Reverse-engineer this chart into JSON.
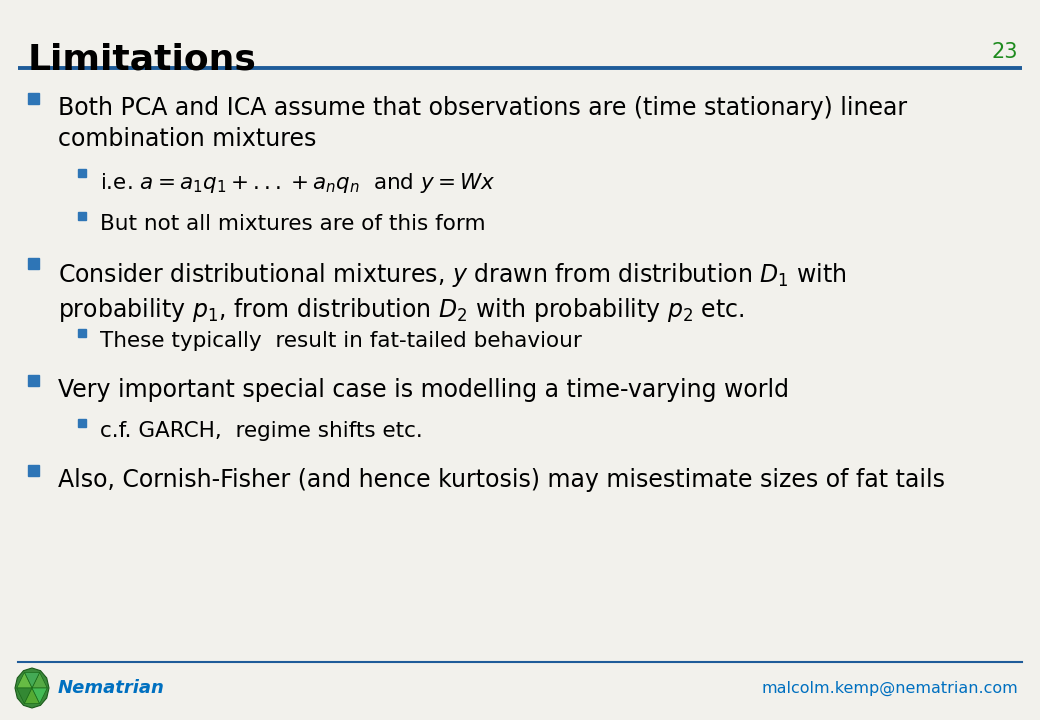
{
  "title": "Limitations",
  "slide_number": "23",
  "title_color": "#000000",
  "slide_number_color": "#1E8B1E",
  "header_line_color": "#1F5C99",
  "background_color": "#F2F1EC",
  "bullet_color": "#2E75B6",
  "sub_bullet_color": "#2E75B6",
  "text_color": "#000000",
  "footer_logo_text": "Nematrian",
  "footer_logo_color": "#0070C0",
  "footer_email": "malcolm.kemp@nematrian.com",
  "footer_email_color": "#0070C0",
  "title_fontsize": 26,
  "slide_num_fontsize": 15,
  "l1_fontsize": 17,
  "l2_fontsize": 15.5,
  "footer_fontsize": 13,
  "items": [
    {
      "level": 1,
      "text": "Both PCA and ICA assume that observations are (time stationary) linear\ncombination mixtures"
    },
    {
      "level": 2,
      "text": "i.e. $a = a_1q_1 + ... + a_nq_n$  and $y = Wx$"
    },
    {
      "level": 2,
      "text": "But not all mixtures are of this form"
    },
    {
      "level": 1,
      "text": "Consider distributional mixtures, $y$ drawn from distribution $D_1$ with\nprobability $p_1$, from distribution $D_2$ with probability $p_2$ etc."
    },
    {
      "level": 2,
      "text": "These typically  result in fat-tailed behaviour"
    },
    {
      "level": 1,
      "text": "Very important special case is modelling a time-varying world"
    },
    {
      "level": 2,
      "text": "c.f. GARCH,  regime shifts etc."
    },
    {
      "level": 1,
      "text": "Also, Cornish-Fisher (and hence kurtosis) may misestimate sizes of fat tails"
    }
  ]
}
